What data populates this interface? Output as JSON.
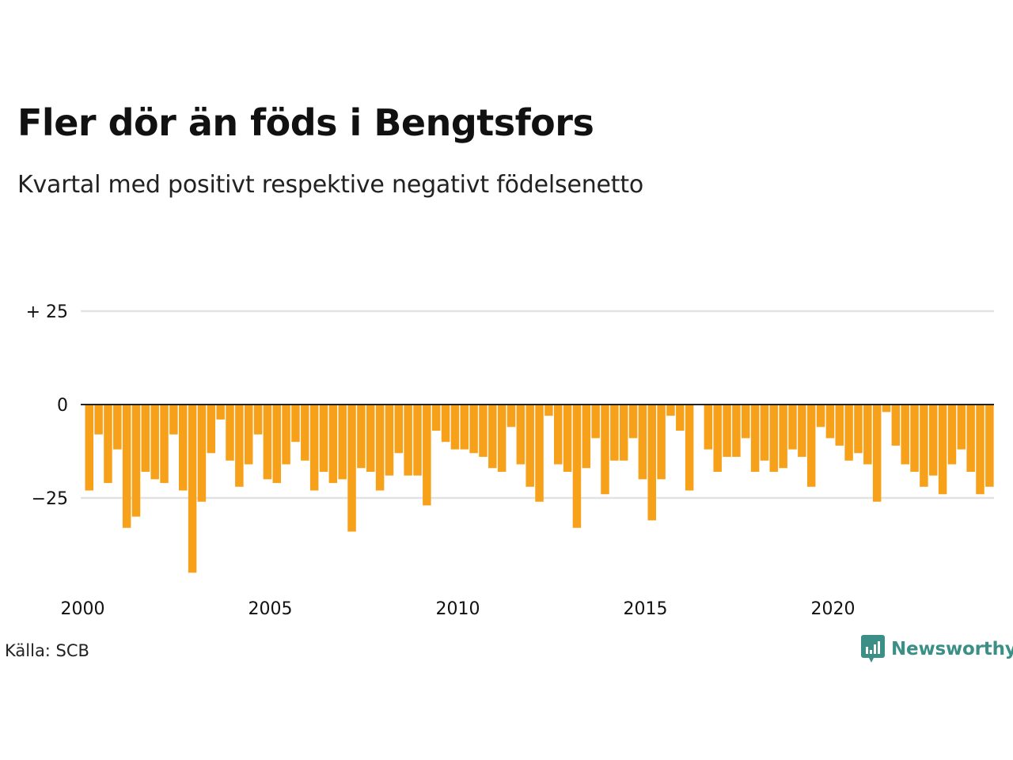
{
  "title": "Fler dör än föds i Bengtsfors",
  "subtitle": "Kvartal med positivt respektive negativt födelsenetto",
  "source": "Källa: SCB",
  "brand": "Newsworthy",
  "colors": {
    "bar": "#f7a11a",
    "zero_line": "#222222",
    "grid": "#e2e2e2",
    "brand": "#3b8f86"
  },
  "icons": {
    "brand_logo": "newsworthy-logo-icon"
  },
  "chart_data": {
    "type": "bar",
    "x_start": "2000 Q1",
    "x_ticks": [
      "2000",
      "2005",
      "2010",
      "2015",
      "2020"
    ],
    "y_ticks": [
      {
        "value": 25,
        "label": "+ 25"
      },
      {
        "value": 0,
        "label": "0"
      },
      {
        "value": -25,
        "label": "−25"
      }
    ],
    "ylim": [
      -45,
      25
    ],
    "grid": true,
    "values": [
      -23,
      -8,
      -21,
      -12,
      -33,
      -30,
      -18,
      -20,
      -21,
      -8,
      -23,
      -45,
      -26,
      -13,
      -4,
      -15,
      -22,
      -16,
      -8,
      -20,
      -21,
      -16,
      -10,
      -15,
      -23,
      -18,
      -21,
      -20,
      -34,
      -17,
      -18,
      -23,
      -19,
      -13,
      -19,
      -19,
      -27,
      -7,
      -10,
      -12,
      -12,
      -13,
      -14,
      -17,
      -18,
      -6,
      -16,
      -22,
      -26,
      -3,
      -16,
      -18,
      -33,
      -17,
      -9,
      -24,
      -15,
      -15,
      -9,
      -20,
      -31,
      -20,
      -3,
      -7,
      -23,
      0,
      -12,
      -18,
      -14,
      -14,
      -9,
      -18,
      -15,
      -18,
      -17,
      -12,
      -14,
      -22,
      -6,
      -9,
      -11,
      -15,
      -13,
      -16,
      -26,
      -2,
      -11,
      -16,
      -18,
      -22,
      -19,
      -24,
      -16,
      -12,
      -18,
      -24,
      -22
    ]
  }
}
